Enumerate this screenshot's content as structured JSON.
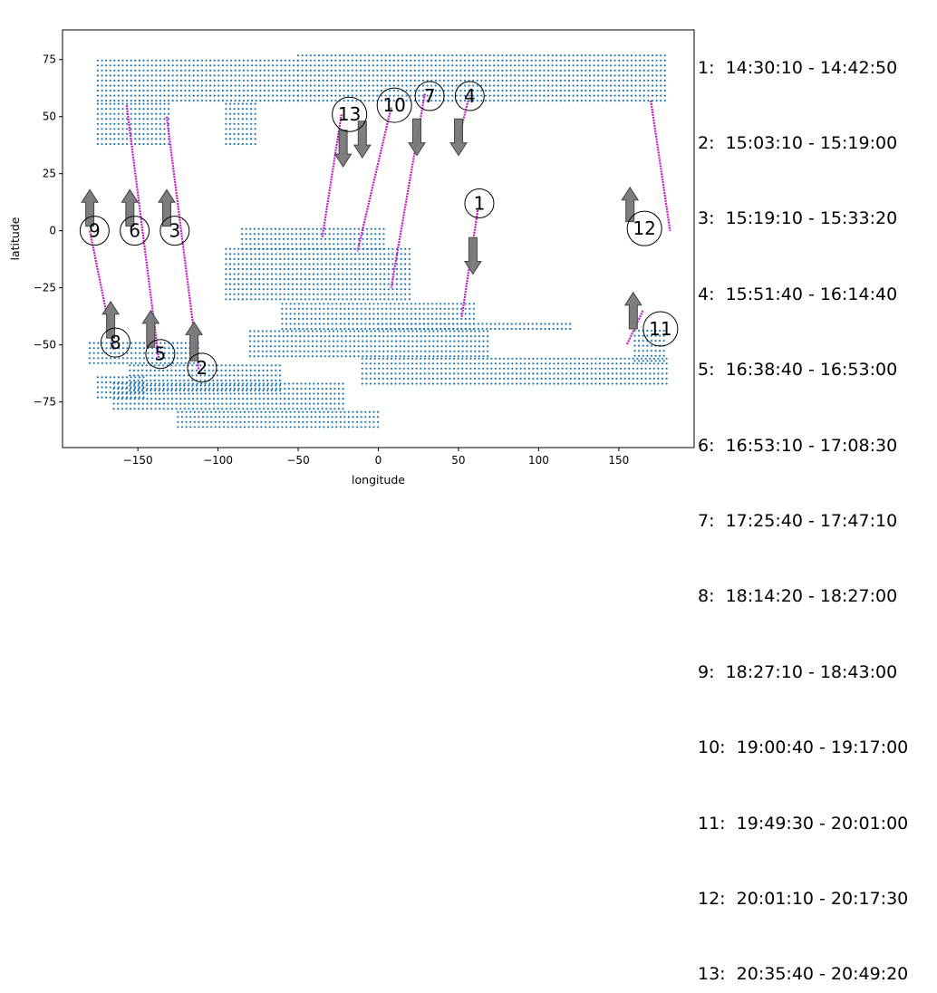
{
  "chart_data": {
    "type": "scatter",
    "xlabel": "longitude",
    "ylabel": "latitude",
    "xlim": [
      -197,
      197
    ],
    "ylim": [
      -95,
      88
    ],
    "xticks": [
      -150,
      -100,
      -50,
      0,
      50,
      100,
      150
    ],
    "yticks": [
      -75,
      -50,
      -25,
      0,
      25,
      50,
      75
    ],
    "grid": false,
    "colors": {
      "background_points": "#1f77b4",
      "tracks": "#c71bc7",
      "arrows": "#777777"
    },
    "background_regions": [
      {
        "lon": [
          -175,
          -50
        ],
        "lat": [
          57,
          75
        ]
      },
      {
        "lon": [
          -50,
          180
        ],
        "lat": [
          57,
          77
        ]
      },
      {
        "lon": [
          -175,
          -130
        ],
        "lat": [
          38,
          57
        ]
      },
      {
        "lon": [
          -95,
          -75
        ],
        "lat": [
          38,
          57
        ]
      },
      {
        "lon": [
          -85,
          5
        ],
        "lat": [
          -8,
          2
        ]
      },
      {
        "lon": [
          -95,
          20
        ],
        "lat": [
          -30,
          -8
        ]
      },
      {
        "lon": [
          -60,
          60
        ],
        "lat": [
          -43,
          -30
        ]
      },
      {
        "lon": [
          0,
          120
        ],
        "lat": [
          -43,
          -40
        ]
      },
      {
        "lon": [
          -80,
          70
        ],
        "lat": [
          -55,
          -43
        ]
      },
      {
        "lon": [
          160,
          180
        ],
        "lat": [
          -57,
          -42
        ]
      },
      {
        "lon": [
          -180,
          -110
        ],
        "lat": [
          -58,
          -48
        ]
      },
      {
        "lon": [
          -155,
          -60
        ],
        "lat": [
          -70,
          -58
        ]
      },
      {
        "lon": [
          -10,
          180
        ],
        "lat": [
          -67,
          -55
        ]
      },
      {
        "lon": [
          -175,
          -145
        ],
        "lat": [
          -73,
          -64
        ]
      },
      {
        "lon": [
          -165,
          -20
        ],
        "lat": [
          -78,
          -67
        ]
      },
      {
        "lon": [
          -125,
          0
        ],
        "lat": [
          -86,
          -78
        ]
      }
    ],
    "tracks": [
      {
        "label": "1",
        "lon": [
          62,
          52
        ],
        "lat": [
          9,
          -38
        ],
        "label_at": [
          63,
          12
        ],
        "arrow": "down",
        "arrow_lon": 59,
        "arrow_lat": [
          -3,
          -19
        ]
      },
      {
        "label": "2",
        "lon": [
          -132,
          -112
        ],
        "lat": [
          50,
          -61
        ],
        "label_at": [
          -110,
          -60
        ],
        "arrow": "up",
        "arrow_lon": -115,
        "arrow_lat": [
          -57,
          -40
        ]
      },
      {
        "label": "3",
        "lon": [
          -130,
          -125
        ],
        "lat": [
          0,
          0
        ],
        "label_at": [
          -127,
          0
        ],
        "arrow": "up",
        "arrow_lon": -132,
        "arrow_lat": [
          2,
          18
        ]
      },
      {
        "label": "4",
        "lon": [
          56,
          50
        ],
        "lat": [
          57,
          40
        ],
        "label_at": [
          57,
          59
        ],
        "arrow": "down",
        "arrow_lon": 50,
        "arrow_lat": [
          49,
          33
        ]
      },
      {
        "label": "5",
        "lon": [
          -157,
          -137
        ],
        "lat": [
          55,
          -56
        ],
        "label_at": [
          -136,
          -54
        ],
        "arrow": "up",
        "arrow_lon": -142,
        "arrow_lat": [
          -51,
          -35
        ]
      },
      {
        "label": "6",
        "lon": [
          -155,
          -150
        ],
        "lat": [
          0,
          0
        ],
        "label_at": [
          -152,
          0
        ],
        "arrow": "up",
        "arrow_lon": -155,
        "arrow_lat": [
          2,
          18
        ]
      },
      {
        "label": "7",
        "lon": [
          29,
          8
        ],
        "lat": [
          60,
          -25
        ],
        "label_at": [
          32,
          59
        ],
        "arrow": "down",
        "arrow_lon": 24,
        "arrow_lat": [
          49,
          33
        ]
      },
      {
        "label": "8",
        "lon": [
          -180,
          -165
        ],
        "lat": [
          0,
          -52
        ],
        "label_at": [
          -164,
          -49
        ],
        "arrow": "up",
        "arrow_lon": -167,
        "arrow_lat": [
          -47,
          -31
        ]
      },
      {
        "label": "9",
        "lon": [
          -180,
          -175
        ],
        "lat": [
          0,
          0
        ],
        "label_at": [
          -177,
          0
        ],
        "arrow": "up",
        "arrow_lon": -180,
        "arrow_lat": [
          2,
          18
        ]
      },
      {
        "label": "10",
        "lon": [
          8,
          -13
        ],
        "lat": [
          54,
          -9
        ],
        "label_at": [
          10,
          55
        ],
        "arrow": "down",
        "arrow_lon": -10,
        "arrow_lat": [
          48,
          32
        ]
      },
      {
        "label": "11",
        "lon": [
          165,
          155
        ],
        "lat": [
          -35,
          -50
        ],
        "label_at": [
          176,
          -43
        ],
        "arrow": "up",
        "arrow_lon": 159,
        "arrow_lat": [
          -43,
          -27
        ]
      },
      {
        "label": "12",
        "lon": [
          170,
          182
        ],
        "lat": [
          57,
          0
        ],
        "label_at": [
          166,
          1
        ],
        "arrow": "up",
        "arrow_lon": 157,
        "arrow_lat": [
          4,
          19
        ]
      },
      {
        "label": "13",
        "lon": [
          -23,
          -35
        ],
        "lat": [
          51,
          -3
        ],
        "label_at": [
          -18,
          51
        ],
        "arrow": "down",
        "arrow_lon": -22,
        "arrow_lat": [
          44,
          28
        ]
      }
    ]
  },
  "legend": [
    "1:  14:30:10 - 14:42:50",
    "2:  15:03:10 - 15:19:00",
    "3:  15:19:10 - 15:33:20",
    "4:  15:51:40 - 16:14:40",
    "5:  16:38:40 - 16:53:00",
    "6:  16:53:10 - 17:08:30",
    "7:  17:25:40 - 17:47:10",
    "8:  18:14:20 - 18:27:00",
    "9:  18:27:10 - 18:43:00",
    "10:  19:00:40 - 19:17:00",
    "11:  19:49:30 - 20:01:00",
    "12:  20:01:10 - 20:17:30",
    "13:  20:35:40 - 20:49:20"
  ]
}
